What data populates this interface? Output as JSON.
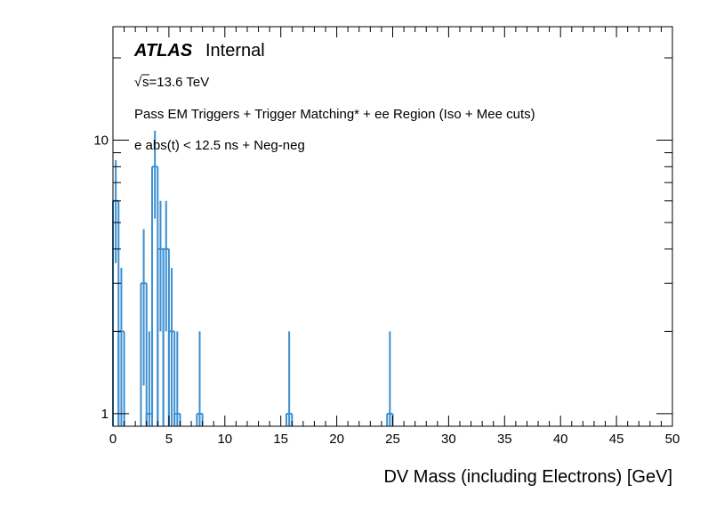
{
  "header": {
    "atlas": "ATLAS",
    "internal": "Internal",
    "sqrt_symbol": "√",
    "energy": "s=13.6 TeV",
    "selection_line1": "Pass EM Triggers + Trigger Matching* + ee Region (Iso + Mee cuts)",
    "selection_line2": "e abs(t) < 12.5 ns + Neg-neg"
  },
  "colors": {
    "histogram": "#3b8fd2",
    "frame": "#000000"
  },
  "chart_data": {
    "type": "histogram",
    "xlabel": "DV Mass (including Electrons) [GeV]",
    "ylabel": "",
    "xlim": [
      0,
      50
    ],
    "yscale": "log",
    "ylim": [
      0.9,
      26
    ],
    "grid": false,
    "xticks": [
      "0",
      "5",
      "10",
      "15",
      "20",
      "25",
      "30",
      "35",
      "40",
      "45",
      "50"
    ],
    "yticks": [
      "1",
      "10"
    ],
    "bin_width": 0.5,
    "bins": [
      {
        "center": 0.25,
        "count": 6
      },
      {
        "center": 0.75,
        "count": 2
      },
      {
        "center": 2.75,
        "count": 3
      },
      {
        "center": 3.25,
        "count": 1
      },
      {
        "center": 3.75,
        "count": 8
      },
      {
        "center": 4.25,
        "count": 4
      },
      {
        "center": 4.75,
        "count": 4
      },
      {
        "center": 5.25,
        "count": 2
      },
      {
        "center": 5.75,
        "count": 1
      },
      {
        "center": 7.75,
        "count": 1
      },
      {
        "center": 15.75,
        "count": 1
      },
      {
        "center": 24.75,
        "count": 1
      }
    ]
  }
}
